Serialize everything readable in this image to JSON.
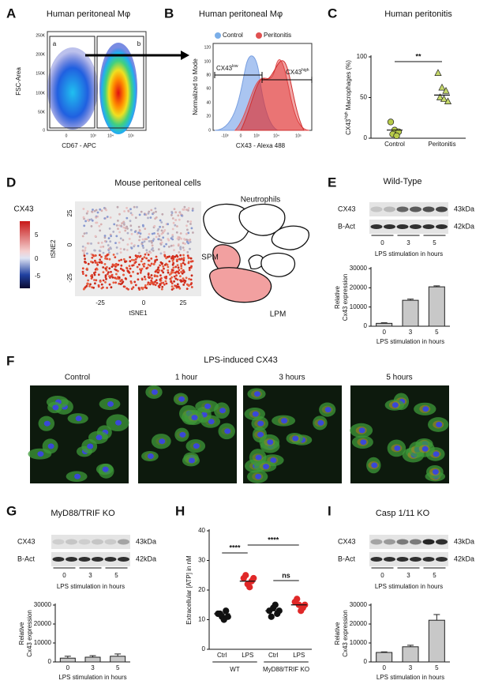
{
  "panel_letters": [
    "A",
    "B",
    "C",
    "D",
    "E",
    "F",
    "G",
    "H",
    "I"
  ],
  "flow_plot": {
    "title": "Human peritoneal Mφ",
    "x_label": "CD67 - APC",
    "y_label": "FSC-Area",
    "gates": [
      "a",
      "b"
    ],
    "yticks": [
      "250K",
      "200K",
      "150K",
      "100K",
      "50K",
      "0"
    ],
    "xticks": [
      "0",
      "10³",
      "10⁴",
      "10⁵"
    ]
  },
  "histogram": {
    "title": "Human peritoneal Mφ",
    "legend": [
      "Control",
      "Peritonitis"
    ],
    "y_label": "Normalized to Mode",
    "x_label": "CX43 - Alexa 488",
    "yticks": [
      "120",
      "100",
      "80",
      "60",
      "40",
      "20",
      "0"
    ],
    "xticks": [
      "-10³",
      "0",
      "10³",
      "10⁴",
      "10⁵"
    ],
    "gate_low": [
      "CX43",
      "low"
    ],
    "gate_high": [
      "CX43",
      "high"
    ]
  },
  "tsne": {
    "title": "Mouse peritoneal cells",
    "colorbar_title": "CX43",
    "colorbar_ticks": [
      "5",
      "0",
      "-5"
    ],
    "y_label": "tSNE2",
    "x_label": "tSNE1",
    "yticks": [
      "25",
      "0",
      "-25"
    ],
    "xticks": [
      "-25",
      "0",
      "25"
    ],
    "diagram_labels": [
      "Neutrophils",
      "SPM",
      "LPM"
    ]
  },
  "blots": [
    {
      "title": "Wild-Type",
      "rows": [
        "CX43",
        "B-Act"
      ],
      "sizes": [
        "43kDa",
        "42kDa"
      ],
      "lanes": [
        "0",
        "3",
        "5"
      ],
      "x_label": "LPS stimulation in hours"
    },
    {
      "title": "MyD88/TRIF KO",
      "rows": [
        "CX43",
        "B-Act"
      ],
      "sizes": [
        "43kDa",
        "42kDa"
      ],
      "lanes": [
        "0",
        "3",
        "5"
      ],
      "x_label": "LPS stimulation in hours"
    },
    {
      "title": "Casp 1/11 KO",
      "rows": [
        "CX43",
        "B-Act"
      ],
      "sizes": [
        "43kDa",
        "42kDa"
      ],
      "lanes": [
        "0",
        "3",
        "5"
      ],
      "x_label": "LPS stimulation in hours"
    }
  ],
  "microscopy": {
    "title": "LPS-induced CX43",
    "labels": [
      "Control",
      "1 hour",
      "3 hours",
      "5 hours"
    ]
  },
  "chart_data": [
    {
      "type": "strip",
      "title": "Human peritonitis",
      "y_label": [
        "CX43",
        "high",
        " Macrophages (%)"
      ],
      "categories": [
        "Control",
        "Peritonitis"
      ],
      "values": [
        [
          20,
          10,
          8,
          5,
          3
        ],
        [
          80,
          62,
          58,
          50,
          48,
          45
        ]
      ],
      "means": [
        10,
        53
      ],
      "markers": [
        "circle",
        "triangle"
      ],
      "colors": [
        "#b8cc4a",
        "#c6d96a"
      ],
      "ylim": [
        0,
        100
      ],
      "yticks": [
        0,
        50,
        100
      ],
      "annotations": [
        "**"
      ]
    },
    {
      "type": "bar",
      "categories": [
        "0",
        "3",
        "5"
      ],
      "values": [
        1500,
        13500,
        20500
      ],
      "errors": [
        300,
        600,
        500
      ],
      "color": "#c8c8c8",
      "ylim": [
        0,
        30000
      ],
      "yticks": [
        0,
        10000,
        20000,
        30000
      ],
      "y_label": [
        "Relative",
        "Cx43 expression"
      ],
      "x_label": "LPS stimulation in hours"
    },
    {
      "type": "bar",
      "categories": [
        "0",
        "3",
        "5"
      ],
      "values": [
        2000,
        2500,
        3000
      ],
      "errors": [
        1000,
        800,
        1200
      ],
      "color": "#c8c8c8",
      "ylim": [
        0,
        30000
      ],
      "yticks": [
        0,
        10000,
        20000,
        30000
      ],
      "y_label": [
        "Relative",
        "Cx43 expression"
      ],
      "x_label": "LPS stimulation in hours"
    },
    {
      "type": "strip",
      "y_label": "Extracellular [ATP] in nM",
      "categories": [
        "Ctrl",
        "LPS",
        "Ctrl",
        "LPS"
      ],
      "values": [
        [
          12,
          11,
          13,
          12,
          10,
          11
        ],
        [
          24,
          22,
          23,
          25,
          21,
          24
        ],
        [
          13,
          14,
          12,
          11,
          15,
          13
        ],
        [
          16,
          15,
          14,
          17,
          13,
          15
        ]
      ],
      "means": [
        12,
        23,
        13,
        15
      ],
      "markers": [
        "circle",
        "circle",
        "circle",
        "circle"
      ],
      "colors": [
        "#111111",
        "#e02828",
        "#111111",
        "#e02828"
      ],
      "ylim": [
        0,
        40
      ],
      "yticks": [
        0,
        10,
        20,
        30,
        40
      ],
      "group_labels": [
        "WT",
        "MyD88/TRIF KO"
      ],
      "annotations": [
        "****",
        "****",
        "ns"
      ]
    },
    {
      "type": "bar",
      "categories": [
        "0",
        "3",
        "5"
      ],
      "values": [
        5000,
        8000,
        22000
      ],
      "errors": [
        300,
        800,
        3000
      ],
      "color": "#c8c8c8",
      "ylim": [
        0,
        30000
      ],
      "yticks": [
        0,
        10000,
        20000,
        30000
      ],
      "y_label": [
        "Relative",
        "Cx43 expression"
      ],
      "x_label": "LPS stimulation in hours"
    }
  ]
}
